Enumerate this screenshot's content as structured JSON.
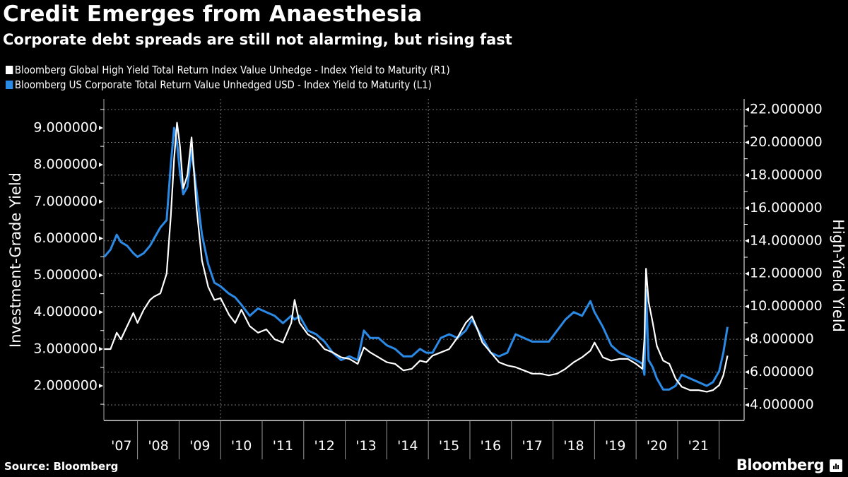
{
  "header": {
    "title": "Credit Emerges from Anaesthesia",
    "subtitle": "Corporate debt spreads are still not alarming, but rising fast"
  },
  "footer": {
    "source": "Source: Bloomberg",
    "brand": "Bloomberg",
    "brand_icon": "bloomberg-chart-icon"
  },
  "chart_data": {
    "type": "line",
    "title": "Credit Emerges from Anaesthesia",
    "subtitle": "Corporate debt spreads are still not alarming, but rising fast",
    "legend_placement": "top-left",
    "grid": true,
    "x_ticks": [
      "'07",
      "'08",
      "'09",
      "'10",
      "'11",
      "'12",
      "'13",
      "'14",
      "'15",
      "'16",
      "'17",
      "'18",
      "'19",
      "'20",
      "'21"
    ],
    "x_range": [
      2007.19,
      2022.6
    ],
    "y_left": {
      "label": "Investment-Grade Yield",
      "range": [
        1.3,
        9.5
      ],
      "ticks": [
        "2.000000",
        "3.000000",
        "4.000000",
        "5.000000",
        "6.000000",
        "7.000000",
        "8.000000",
        "9.000000"
      ],
      "tick_values": [
        2,
        3,
        4,
        5,
        6,
        7,
        8,
        9
      ]
    },
    "y_right": {
      "label": "High-Yield Yield",
      "range": [
        2.5,
        22.6
      ],
      "ticks": [
        "4.000000",
        "6.000000",
        "8.000000",
        "10.000000",
        "12.000000",
        "14.000000",
        "16.000000",
        "18.000000",
        "20.000000",
        "22.000000"
      ],
      "tick_values": [
        4,
        6,
        8,
        10,
        12,
        14,
        16,
        18,
        20,
        22
      ]
    },
    "series": [
      {
        "name": "Bloomberg Global High Yield Total Return Index Value Unhedge - Index Yield to Maturity (R1)",
        "axis": "right",
        "color": "#ffffff",
        "x": [
          2007.2,
          2007.35,
          2007.5,
          2007.6,
          2007.75,
          2007.9,
          2008.0,
          2008.15,
          2008.3,
          2008.4,
          2008.55,
          2008.7,
          2008.8,
          2008.88,
          2008.95,
          2009.02,
          2009.1,
          2009.2,
          2009.3,
          2009.42,
          2009.55,
          2009.7,
          2009.85,
          2010.0,
          2010.2,
          2010.35,
          2010.5,
          2010.7,
          2010.9,
          2011.1,
          2011.3,
          2011.5,
          2011.7,
          2011.78,
          2011.9,
          2012.1,
          2012.3,
          2012.5,
          2012.7,
          2012.9,
          2013.1,
          2013.3,
          2013.45,
          2013.6,
          2013.8,
          2014.0,
          2014.2,
          2014.4,
          2014.6,
          2014.8,
          2014.95,
          2015.1,
          2015.3,
          2015.5,
          2015.7,
          2015.9,
          2016.05,
          2016.15,
          2016.3,
          2016.5,
          2016.7,
          2016.9,
          2017.1,
          2017.3,
          2017.5,
          2017.7,
          2017.9,
          2018.1,
          2018.3,
          2018.5,
          2018.7,
          2018.9,
          2019.0,
          2019.2,
          2019.4,
          2019.6,
          2019.8,
          2020.0,
          2020.15,
          2020.2,
          2020.24,
          2020.3,
          2020.4,
          2020.5,
          2020.65,
          2020.8,
          2020.95,
          2021.1,
          2021.3,
          2021.5,
          2021.7,
          2021.85,
          2022.0,
          2022.1,
          2022.2
        ],
        "values": [
          7.4,
          7.4,
          8.4,
          8.0,
          8.8,
          9.6,
          9.0,
          9.8,
          10.4,
          10.6,
          10.8,
          12.0,
          15.5,
          19.0,
          21.2,
          19.8,
          17.2,
          18.0,
          20.3,
          16.0,
          12.8,
          11.2,
          10.4,
          10.5,
          9.5,
          9.0,
          9.8,
          8.8,
          8.4,
          8.6,
          8.0,
          7.8,
          9.0,
          10.4,
          9.0,
          8.3,
          8.0,
          7.4,
          7.2,
          6.9,
          6.8,
          6.5,
          7.5,
          7.2,
          6.9,
          6.6,
          6.5,
          6.1,
          6.2,
          6.7,
          6.6,
          7.0,
          7.2,
          7.4,
          8.1,
          9.0,
          9.4,
          8.8,
          7.8,
          7.2,
          6.6,
          6.4,
          6.3,
          6.1,
          5.9,
          5.9,
          5.8,
          5.9,
          6.2,
          6.6,
          6.9,
          7.3,
          7.8,
          6.9,
          6.7,
          6.8,
          6.8,
          6.5,
          6.2,
          8.0,
          12.3,
          10.3,
          9.0,
          7.6,
          6.7,
          6.5,
          5.6,
          5.1,
          4.9,
          4.9,
          4.8,
          4.9,
          5.2,
          5.8,
          7.0
        ]
      },
      {
        "name": "Bloomberg US Corporate Total Return Value Unhedged USD - Index Yield to Maturity (L1)",
        "axis": "left",
        "color": "#2b8ae6",
        "x": [
          2007.2,
          2007.35,
          2007.5,
          2007.6,
          2007.75,
          2007.9,
          2008.0,
          2008.15,
          2008.3,
          2008.4,
          2008.55,
          2008.7,
          2008.8,
          2008.88,
          2008.95,
          2009.02,
          2009.1,
          2009.2,
          2009.3,
          2009.42,
          2009.55,
          2009.7,
          2009.85,
          2010.0,
          2010.2,
          2010.35,
          2010.5,
          2010.7,
          2010.9,
          2011.1,
          2011.3,
          2011.5,
          2011.7,
          2011.78,
          2011.9,
          2012.1,
          2012.3,
          2012.5,
          2012.7,
          2012.9,
          2013.1,
          2013.3,
          2013.45,
          2013.6,
          2013.8,
          2014.0,
          2014.2,
          2014.4,
          2014.6,
          2014.8,
          2014.95,
          2015.1,
          2015.3,
          2015.5,
          2015.7,
          2015.9,
          2016.05,
          2016.15,
          2016.3,
          2016.5,
          2016.7,
          2016.9,
          2017.1,
          2017.3,
          2017.5,
          2017.7,
          2017.9,
          2018.1,
          2018.3,
          2018.5,
          2018.7,
          2018.9,
          2019.0,
          2019.2,
          2019.4,
          2019.6,
          2019.8,
          2020.0,
          2020.15,
          2020.2,
          2020.24,
          2020.3,
          2020.4,
          2020.5,
          2020.65,
          2020.8,
          2020.95,
          2021.1,
          2021.3,
          2021.5,
          2021.7,
          2021.85,
          2022.0,
          2022.1,
          2022.2
        ],
        "values": [
          5.5,
          5.7,
          6.1,
          5.9,
          5.8,
          5.6,
          5.5,
          5.6,
          5.8,
          6.0,
          6.3,
          6.5,
          8.0,
          9.0,
          8.6,
          7.8,
          7.2,
          7.4,
          8.4,
          7.3,
          6.1,
          5.3,
          4.8,
          4.7,
          4.5,
          4.4,
          4.2,
          3.9,
          4.1,
          4.0,
          3.9,
          3.7,
          3.9,
          3.8,
          3.9,
          3.5,
          3.4,
          3.2,
          2.9,
          2.7,
          2.8,
          2.7,
          3.5,
          3.3,
          3.3,
          3.1,
          3.0,
          2.8,
          2.8,
          3.0,
          2.9,
          2.9,
          3.3,
          3.4,
          3.3,
          3.5,
          3.8,
          3.6,
          3.3,
          2.9,
          2.8,
          2.9,
          3.4,
          3.3,
          3.2,
          3.2,
          3.2,
          3.5,
          3.8,
          4.0,
          3.9,
          4.3,
          4.0,
          3.6,
          3.1,
          2.9,
          2.8,
          2.7,
          2.6,
          2.3,
          4.6,
          2.7,
          2.5,
          2.2,
          1.9,
          1.9,
          2.0,
          2.3,
          2.2,
          2.1,
          2.0,
          2.1,
          2.4,
          2.9,
          3.6
        ]
      }
    ]
  }
}
